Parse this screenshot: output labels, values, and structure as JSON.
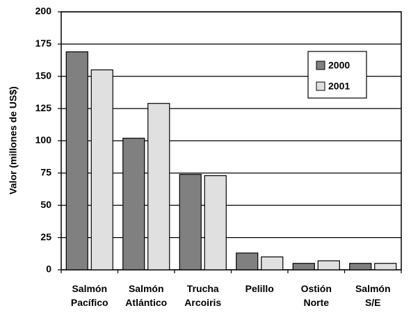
{
  "chart_data": {
    "type": "bar",
    "y_label": "Valor (millones de US$)",
    "categories": [
      "Salmón Pacífico",
      "Salmón Atlántico",
      "Trucha Arcoiris",
      "Pelillo",
      "Ostión Norte",
      "Salmón S/E"
    ],
    "series": [
      {
        "name": "2000",
        "color": "#808080",
        "values": [
          169,
          102,
          74,
          13,
          5,
          5
        ]
      },
      {
        "name": "2001",
        "color": "#e0e0e0",
        "values": [
          155,
          129,
          73,
          10,
          7,
          5
        ]
      }
    ],
    "ylim": [
      0,
      200
    ],
    "yticks": [
      0,
      25,
      50,
      75,
      100,
      125,
      150,
      175,
      200
    ],
    "grid": true,
    "legend": "upper right"
  }
}
